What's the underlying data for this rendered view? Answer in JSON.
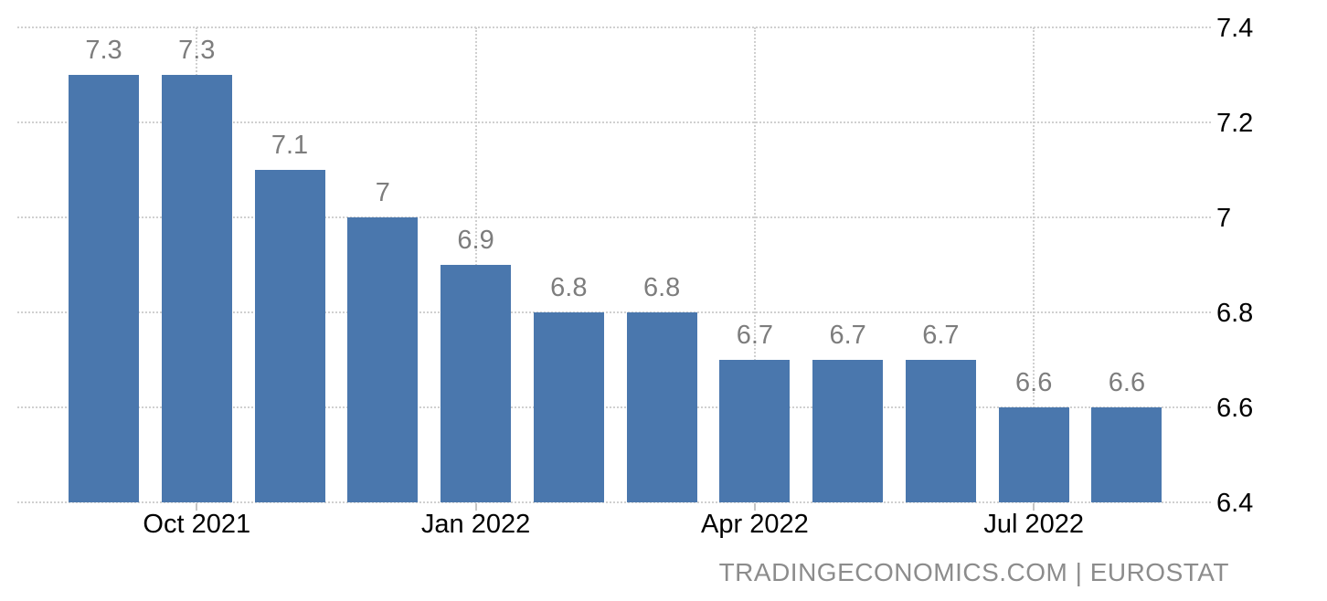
{
  "chart_data": {
    "type": "bar",
    "title": "",
    "xlabel": "",
    "ylabel": "",
    "values": [
      7.3,
      7.3,
      7.1,
      7.0,
      6.9,
      6.8,
      6.8,
      6.7,
      6.7,
      6.7,
      6.6,
      6.6
    ],
    "bar_labels": [
      "7.3",
      "7.3",
      "7.1",
      "7",
      "6.9",
      "6.8",
      "6.8",
      "6.7",
      "6.7",
      "6.7",
      "6.6",
      "6.6"
    ],
    "x_ticks": [
      {
        "label": "Oct 2021",
        "bar_index": 1
      },
      {
        "label": "Jan 2022",
        "bar_index": 4
      },
      {
        "label": "Apr 2022",
        "bar_index": 7
      },
      {
        "label": "Jul 2022",
        "bar_index": 10
      }
    ],
    "y_ticks": [
      {
        "label": "7.4",
        "value": 7.4
      },
      {
        "label": "7.2",
        "value": 7.2
      },
      {
        "label": "7",
        "value": 7.0
      },
      {
        "label": "6.8",
        "value": 6.8
      },
      {
        "label": "6.6",
        "value": 6.6
      },
      {
        "label": "6.4",
        "value": 6.4
      }
    ],
    "ylim": [
      6.4,
      7.4
    ],
    "y_axis_side": "right",
    "legend": "none",
    "grid": "dotted horizontal at every y tick; dotted vertical at labeled x ticks",
    "colors": {
      "bar": "#4a77ad",
      "bar_value_label": "#7d7d7d",
      "axis_label": "#000000",
      "gridline": "#d0d0d0",
      "axis_tick": "#c5c5c5",
      "watermark": "#8c8c8c",
      "background": "#ffffff"
    }
  },
  "watermark": "TRADINGECONOMICS.COM | EUROSTAT"
}
